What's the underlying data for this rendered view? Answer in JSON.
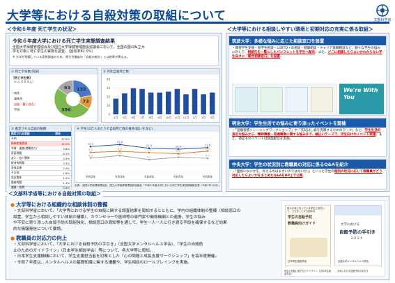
{
  "header": {
    "title": "大学等における自殺対策の取組について",
    "logo_text": "文部科学省"
  },
  "left_top": {
    "section_title": "＜令和６年度 死亡学生の状況＞",
    "survey_title": "令和６年度大学における死亡学生実態調査結果",
    "survey_lines": [
      "全国大学保健管理協会及び国立大学保健管理施設協議会において、全国の国公私立大",
      "学を対象に死亡学生の実態を調査。（回収率82.0%）"
    ],
    "survey_note": "※ 大学が把握している実態調査のため、厚生労働省の「自殺の統計」とは結果が異なる。",
    "box1": {
      "title": "① 死亡学生数(内訳)",
      "total_label": "【死亡学生数】",
      "total_value": "（ｎ＝６０４人）",
      "legend": [
        "病死",
        "事故死",
        "自殺（疑い含む）",
        "不明"
      ],
      "values": [
        132,
        73,
        306,
        93
      ],
      "colors": [
        "#4a78c2",
        "#e59a3a",
        "#7fb84e",
        "#a8a8a8"
      ]
    },
    "box2": {
      "title": "② 月別自殺死亡数",
      "months": [
        "4月",
        "5月",
        "6月",
        "7月",
        "8月",
        "9月",
        "10月",
        "11月",
        "12月",
        "1月",
        "2月",
        "3月"
      ],
      "values": [
        18,
        24,
        30,
        29,
        25,
        25,
        26,
        29,
        23,
        29,
        23,
        25
      ],
      "ylim": [
        0,
        40
      ],
      "yticks": [
        "40",
        "30",
        "20",
        "10",
        "0"
      ],
      "color": "#1f4e9c"
    },
    "box3": {
      "title": "③ 推定される自殺の動機",
      "headers": [
        "推定される原因",
        "割合"
      ],
      "rows": [
        [
          "不明",
          "37.5%"
        ],
        [
          "精神疾患関連",
          "19.0%"
        ],
        [
          "学業・進路(就職含む)",
          "9.8%"
        ],
        [
          "家庭問題",
          "6.2%"
        ],
        [
          "友人・恋人関係",
          "4.9%"
        ],
        [
          "経済的問題",
          "3.3%"
        ],
        [
          "身体疾患",
          "2.0%"
        ],
        [
          "その他",
          "1.8%"
        ],
        [
          "男女関係",
          "1.5%"
        ],
        [
          "勤務問題",
          "1.1%"
        ],
        [
          "健康・医療",
          "0.9%"
        ],
        [
          "学業不振",
          "0.7%"
        ]
      ],
      "highlight_row": 1
    },
    "box4": {
      "title": "④ 学生10万人あたりの自殺死亡数の推移(疑いを含む)",
      "years": [
        "令和2年",
        "令和3年",
        "令和4年",
        "令和5年",
        "令和6年"
      ],
      "series": [
        {
          "name": "学部",
          "values": [
            12.1,
            13.0,
            11.3,
            10.9,
            11.6
          ],
          "color": "#1f4e9c"
        },
        {
          "name": "大学院",
          "values": [
            9.4,
            9.9,
            9.3,
            8.8,
            10.0
          ],
          "color": "#e07a20"
        },
        {
          "name": "全体",
          "values": [
            6.8,
            7.9,
            6.1,
            7.2,
            6.7
          ],
          "color": "#a0a0a0"
        }
      ],
      "point_labels": [
        [
          "12.1",
          "13.0",
          "11.3",
          "10.9",
          "11.6"
        ],
        [
          "9.4",
          "9.9",
          "9.3",
          "8.8",
          "10.0"
        ],
        [
          "6.8",
          "7.9",
          "6.1",
          "7.2",
          "6.7"
        ]
      ],
      "ylim": [
        0,
        16
      ]
    },
    "source": "出典：全国大学保健管理協会、国立大学保健管理施設協議会「令和６年度大学における死亡学生実態調査報告書（令和7年10月）」"
  },
  "right_top": {
    "section_title": "＜大学等における相談しやすい環境と初期対応の充実に係る取組＞",
    "case1": {
      "title": "筑波大学：多様な悩みに応じた相談窓口を設置",
      "text_a": "・障害学生支援・留学生相談・LGBTQ＋の相談・健康相談・キャリア就職相談など、様々な学生の悩みに対して、",
      "text_b": "相談先を一覧にしたパンフレットを学生へ配布",
      "text_c": "。また、",
      "text_d": "どこに相談したらよいかわからない学生向けに「総合相談窓口」を設置",
      "text_e": "。"
    },
    "pamphlet_text": "We're With You",
    "case2": {
      "title": "明治大学：学生生活での悩みに寄り添ったイベントを開催",
      "text_a": "・「話聴習慣トレーニングワークショップ」や「先延ばし癖を克服するためのワーク」など、",
      "text_b": "学生生活の身近な悩みから、精神障害・発達障害に関する悩みまで、幅広いテーマで、学生向けのイベント実施",
      "text_c": "。また、適宜そのイベントは録画配信を実施。"
    },
    "case3": {
      "title": "中央大学：学生の状況別に教職員の対応に係るQ&Aを紹介",
      "text_a": "・「面接になにかを、伝えるのはまずいのではないか」」といった学生の",
      "text_b": "個別の状況に応じて教職員がどう対応したらよいかをまとめたQ&AをHP上で公開",
      "text_c": "。"
    }
  },
  "bottom": {
    "section_title": "＜文部科学省等における自殺対策の取組＞",
    "h1": "大学等における組織的な相談体制の整備",
    "p1": [
      "・文部科学省において、「大学等における学生の自殺に関する調査結果を周知するとともに、学内の組織体制の整備（相談窓口の",
      "設置、学生から相談しやすい体制の構築）、カウンセラーや医師等の専門家や関係機関との連携、学生の悩み",
      "や不安に寄り添った自殺予防の取組強化、相談窓口の周知等を通して、学生一人一人に行き渡る手段を確保するなど効果",
      "的な情報発信について要請。"
    ],
    "h2": "教職員の対応力の向上",
    "p2": [
      "・文部科学省において、「大学における自殺予防の手引き」（全国大学メンタルヘルス学会）、「学生の自殺防",
      "止のためのガイドライン」（日本学生相談学会）等について、各大学等に周知。",
      "・日本学生支援機構において、学生支援担当者を対象とした「心の問題と成長支援ワークショップ」を毎年度開催。",
      "・令和７年度は、メンタルヘルスの基礎知識に関する講義や、学生相談のロールプレイングを実施。"
    ],
    "book1": {
      "header": "何かが気になっている学生に気付いて、できることから始める",
      "lines": [
        "学生の自殺予防",
        "教職員向けガイド"
      ],
      "footer": "日本学生相談学会"
    },
    "book2": {
      "header": "大学における",
      "title": "自殺予防の手引き",
      "year": "２０２４",
      "footer": "全国大学メンタルヘルス学会"
    },
    "caption1": "学生の自殺に関するガイドライン（日本学生相談学会）",
    "caption2": "大学における自殺予防の手引き"
  }
}
